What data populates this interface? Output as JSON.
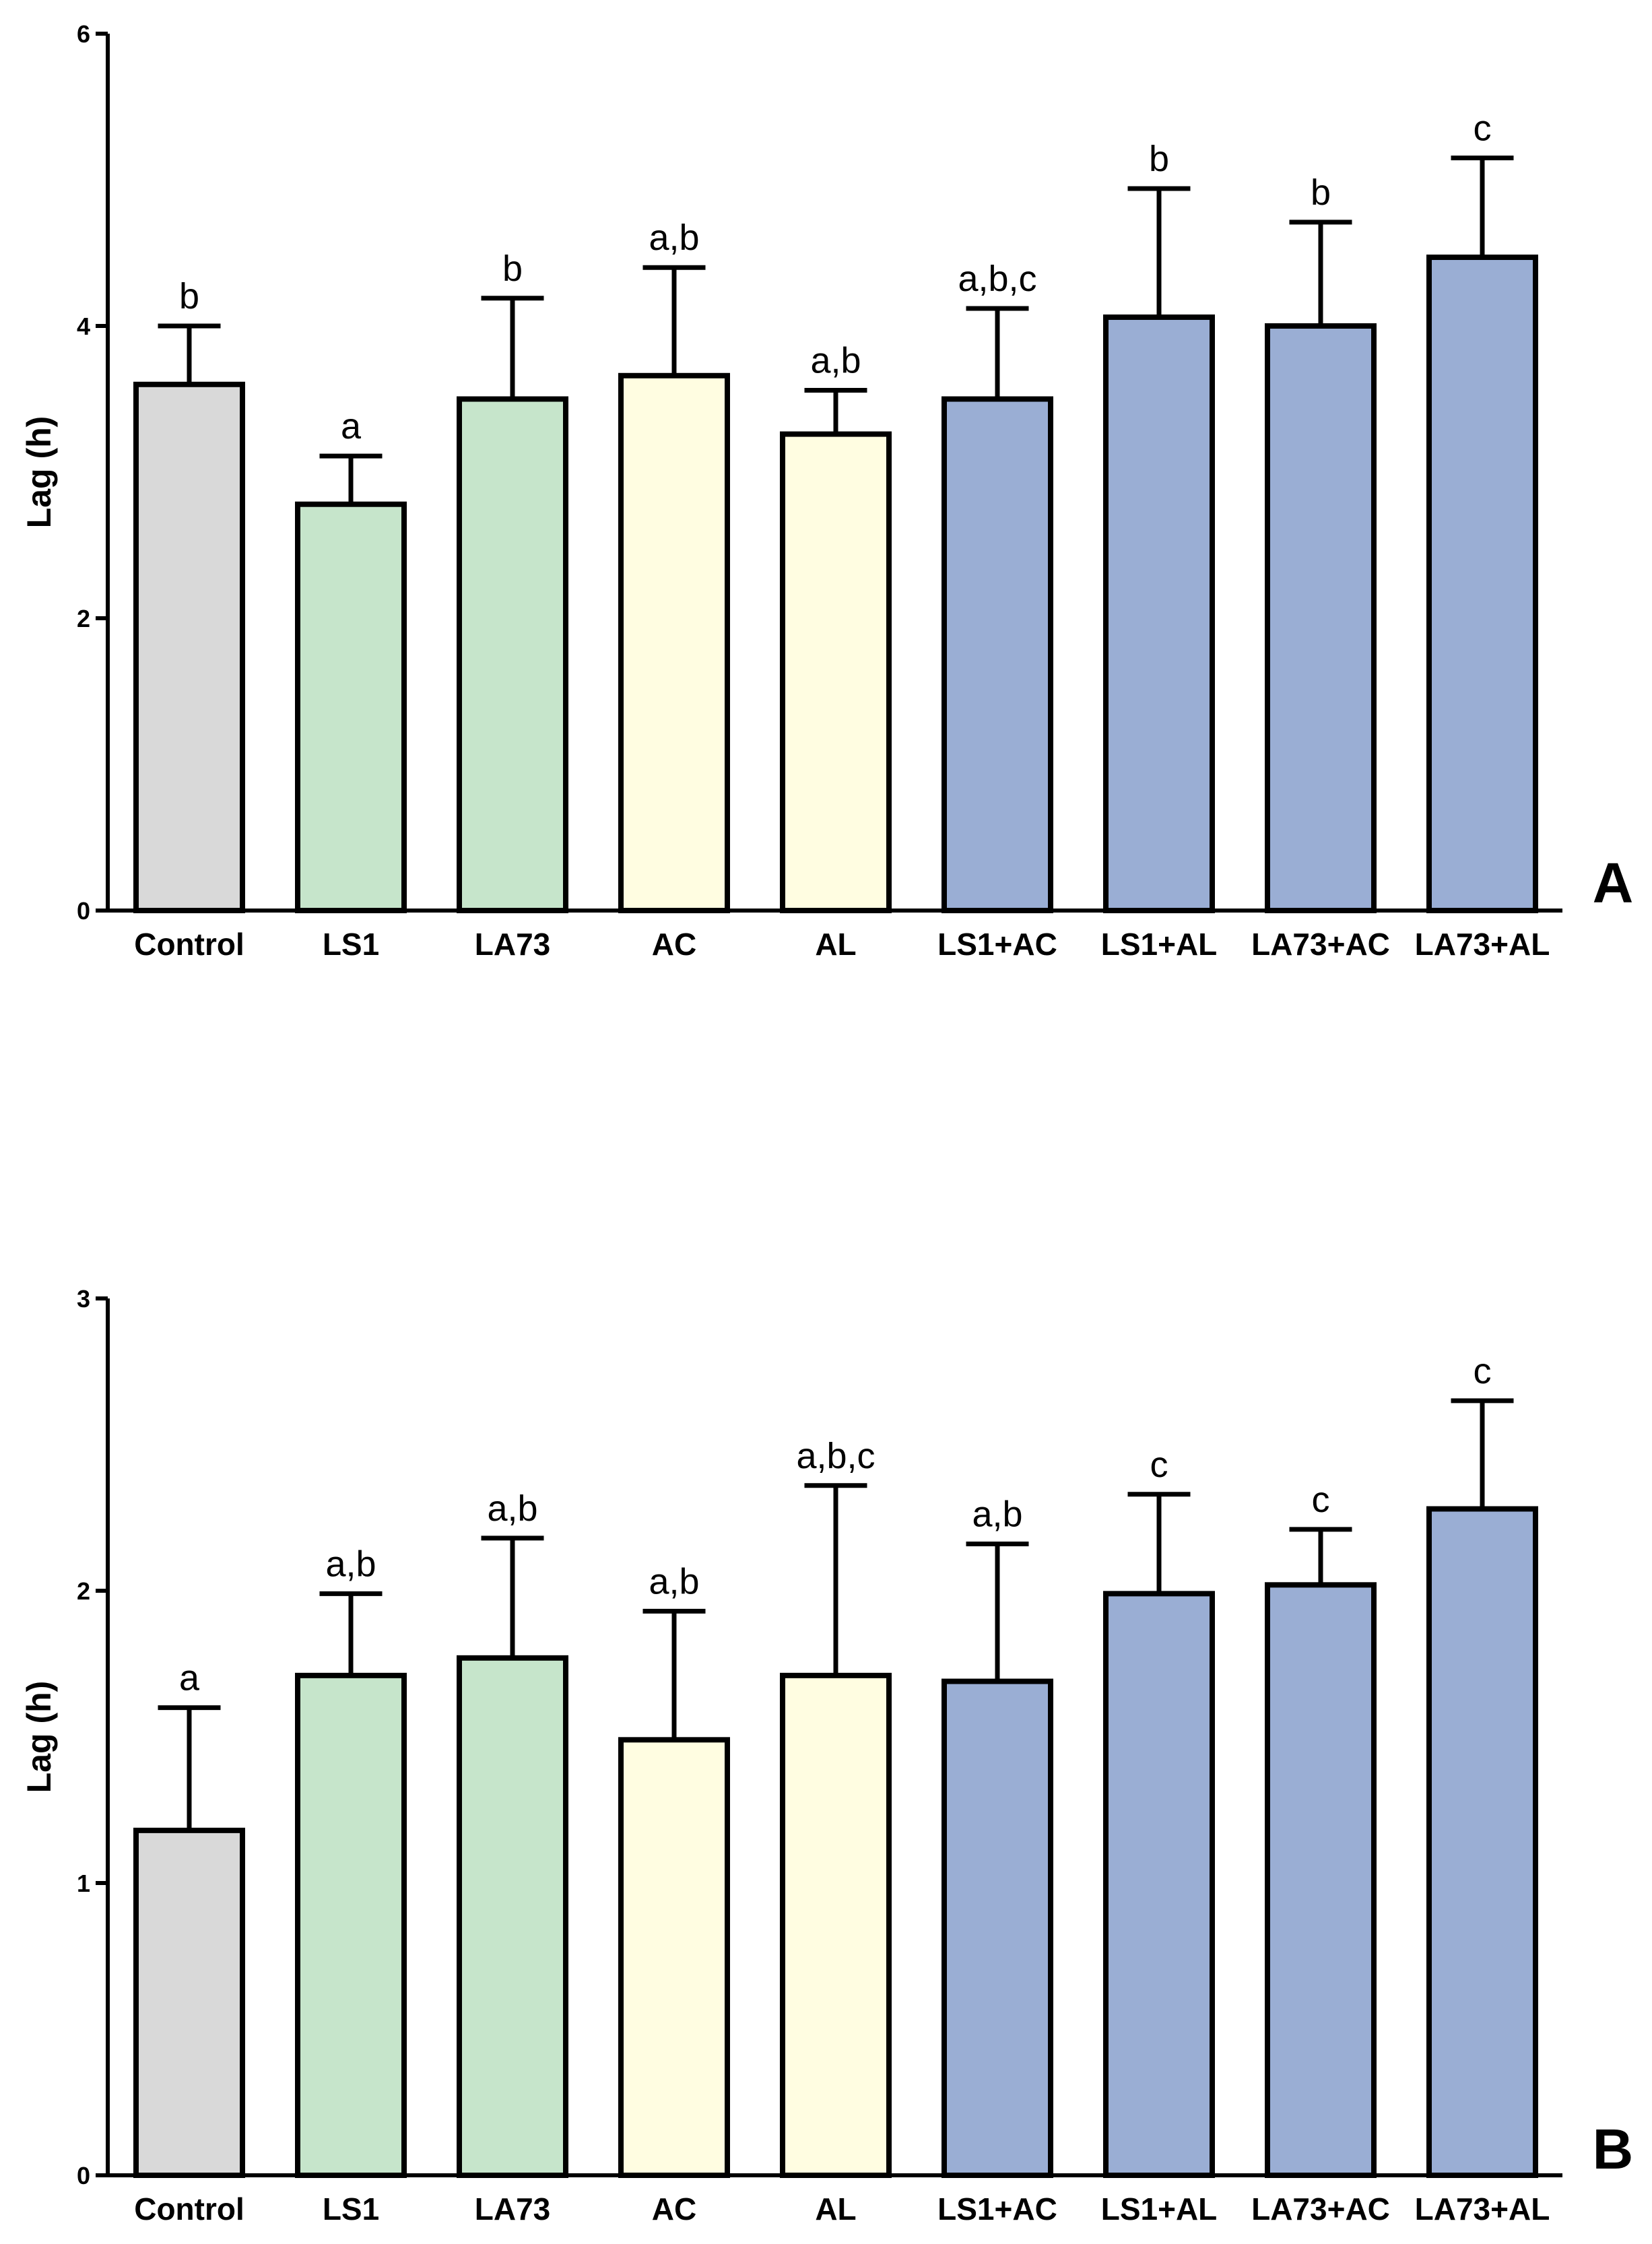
{
  "chart_data": [
    {
      "type": "bar",
      "panel": "A",
      "ylabel": "Lag (h)",
      "ylim": [
        0,
        6
      ],
      "yticks": [
        0,
        2,
        4,
        6
      ],
      "categories": [
        "Control",
        "LS1",
        "LA73",
        "AC",
        "AL",
        "LS1+AC",
        "LS1+AL",
        "LA73+AC",
        "LA73+AL"
      ],
      "values": [
        3.6,
        2.78,
        3.5,
        3.66,
        3.26,
        3.5,
        4.06,
        4.0,
        4.47
      ],
      "errors": [
        0.4,
        0.33,
        0.69,
        0.74,
        0.3,
        0.62,
        0.88,
        0.71,
        0.68
      ],
      "significance": [
        "b",
        "a",
        "b",
        "a,b",
        "a,b",
        "a,b,c",
        "b",
        "b",
        "c"
      ],
      "colors": [
        "#d9d9d9",
        "#c6e5cb",
        "#c6e5cb",
        "#fffde1",
        "#fffde1",
        "#9aaed4",
        "#9aaed4",
        "#9aaed4",
        "#9aaed4"
      ]
    },
    {
      "type": "bar",
      "panel": "B",
      "ylabel": "Lag (h)",
      "ylim": [
        0,
        3
      ],
      "yticks": [
        0,
        1,
        2,
        3
      ],
      "categories": [
        "Control",
        "LS1",
        "LA73",
        "AC",
        "AL",
        "LS1+AC",
        "LS1+AL",
        "LA73+AC",
        "LA73+AL"
      ],
      "values": [
        1.18,
        1.71,
        1.77,
        1.49,
        1.71,
        1.69,
        1.99,
        2.02,
        2.28
      ],
      "errors": [
        0.42,
        0.28,
        0.41,
        0.44,
        0.65,
        0.47,
        0.34,
        0.19,
        0.37
      ],
      "significance": [
        "a",
        "a,b",
        "a,b",
        "a,b",
        "a,b,c",
        "a,b",
        "c",
        "c",
        "c"
      ],
      "colors": [
        "#d9d9d9",
        "#c6e5cb",
        "#c6e5cb",
        "#fffde1",
        "#fffde1",
        "#9aaed4",
        "#9aaed4",
        "#9aaed4",
        "#9aaed4"
      ]
    }
  ]
}
